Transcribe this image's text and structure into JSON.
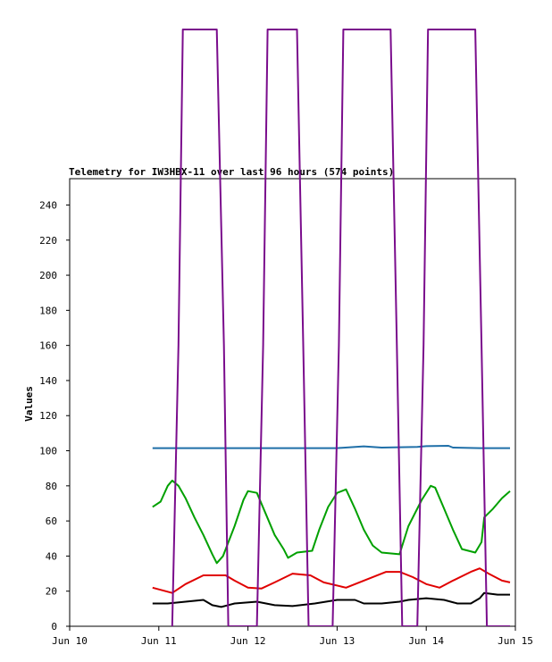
{
  "chart_data": {
    "type": "line",
    "title": "Telemetry for IW3HBX-11 over last 96 hours (574 points)",
    "xlabel": "",
    "ylabel": "Values",
    "xlim": [
      "Jun 10",
      "Jun 15"
    ],
    "ylim": [
      0,
      255
    ],
    "x_ticks": [
      "Jun 10",
      "Jun 11",
      "Jun 12",
      "Jun 13",
      "Jun 14",
      "Jun 15"
    ],
    "y_ticks": [
      0,
      20,
      40,
      60,
      80,
      100,
      120,
      140,
      160,
      180,
      200,
      220,
      240
    ],
    "grid": false,
    "legend": "none",
    "series": [
      {
        "color": "#1f6fa8",
        "points": [
          [
            10.93,
            101.5
          ],
          [
            11.5,
            101.5
          ],
          [
            12.0,
            101.5
          ],
          [
            12.5,
            101.5
          ],
          [
            13.0,
            101.5
          ],
          [
            13.3,
            102.5
          ],
          [
            13.5,
            101.8
          ],
          [
            13.9,
            102.2
          ],
          [
            14.0,
            102.6
          ],
          [
            14.25,
            102.8
          ],
          [
            14.3,
            101.8
          ],
          [
            14.6,
            101.5
          ],
          [
            14.94,
            101.5
          ]
        ]
      },
      {
        "color": "#00a000",
        "points": [
          [
            10.93,
            68
          ],
          [
            11.02,
            71
          ],
          [
            11.1,
            80
          ],
          [
            11.15,
            83
          ],
          [
            11.22,
            80
          ],
          [
            11.3,
            73
          ],
          [
            11.4,
            62
          ],
          [
            11.5,
            52
          ],
          [
            11.6,
            41
          ],
          [
            11.65,
            36
          ],
          [
            11.72,
            40
          ],
          [
            11.85,
            57
          ],
          [
            11.95,
            72
          ],
          [
            12.0,
            77
          ],
          [
            12.1,
            76
          ],
          [
            12.2,
            64
          ],
          [
            12.3,
            52
          ],
          [
            12.4,
            44
          ],
          [
            12.45,
            39
          ],
          [
            12.55,
            42
          ],
          [
            12.72,
            43
          ],
          [
            12.8,
            55
          ],
          [
            12.9,
            68
          ],
          [
            13.0,
            76
          ],
          [
            13.1,
            78
          ],
          [
            13.2,
            67
          ],
          [
            13.3,
            55
          ],
          [
            13.4,
            46
          ],
          [
            13.5,
            42
          ],
          [
            13.7,
            41
          ],
          [
            13.8,
            57
          ],
          [
            13.95,
            72
          ],
          [
            14.05,
            80
          ],
          [
            14.1,
            79
          ],
          [
            14.2,
            67
          ],
          [
            14.3,
            55
          ],
          [
            14.4,
            44
          ],
          [
            14.55,
            42
          ],
          [
            14.62,
            48
          ],
          [
            14.65,
            62
          ],
          [
            14.75,
            67
          ],
          [
            14.85,
            73
          ],
          [
            14.94,
            77
          ]
        ]
      },
      {
        "color": "#e00000",
        "points": [
          [
            10.93,
            22
          ],
          [
            11.0,
            21
          ],
          [
            11.15,
            19
          ],
          [
            11.3,
            24
          ],
          [
            11.5,
            29
          ],
          [
            11.75,
            29
          ],
          [
            11.85,
            26
          ],
          [
            12.0,
            22
          ],
          [
            12.15,
            21.5
          ],
          [
            12.3,
            25
          ],
          [
            12.5,
            30
          ],
          [
            12.7,
            29
          ],
          [
            12.85,
            25
          ],
          [
            13.1,
            22
          ],
          [
            13.3,
            26
          ],
          [
            13.55,
            31
          ],
          [
            13.7,
            31
          ],
          [
            13.85,
            28
          ],
          [
            14.0,
            24
          ],
          [
            14.15,
            22
          ],
          [
            14.3,
            26
          ],
          [
            14.5,
            31
          ],
          [
            14.6,
            33
          ],
          [
            14.7,
            30
          ],
          [
            14.85,
            26
          ],
          [
            14.94,
            25
          ]
        ]
      },
      {
        "color": "#000000",
        "points": [
          [
            10.93,
            13
          ],
          [
            11.1,
            13
          ],
          [
            11.3,
            14
          ],
          [
            11.5,
            15
          ],
          [
            11.6,
            12
          ],
          [
            11.7,
            11
          ],
          [
            11.85,
            13
          ],
          [
            12.1,
            14
          ],
          [
            12.3,
            12
          ],
          [
            12.5,
            11.5
          ],
          [
            12.75,
            13
          ],
          [
            13.0,
            15
          ],
          [
            13.2,
            15
          ],
          [
            13.3,
            13
          ],
          [
            13.5,
            13
          ],
          [
            13.7,
            14
          ],
          [
            13.8,
            15
          ],
          [
            14.0,
            16
          ],
          [
            14.2,
            15
          ],
          [
            14.35,
            13
          ],
          [
            14.5,
            13
          ],
          [
            14.6,
            16
          ],
          [
            14.65,
            19
          ],
          [
            14.8,
            18
          ],
          [
            14.94,
            18
          ]
        ]
      },
      {
        "color": "#7a0c8c",
        "points": [
          [
            11.15,
            0
          ],
          [
            11.22,
            160
          ],
          [
            11.27,
            340
          ],
          [
            11.65,
            340
          ],
          [
            11.73,
            160
          ],
          [
            11.78,
            0
          ],
          [
            12.1,
            0
          ],
          [
            12.17,
            160
          ],
          [
            12.22,
            340
          ],
          [
            12.55,
            340
          ],
          [
            12.62,
            160
          ],
          [
            12.68,
            0
          ],
          [
            12.95,
            0
          ],
          [
            13.02,
            160
          ],
          [
            13.07,
            340
          ],
          [
            13.6,
            340
          ],
          [
            13.67,
            160
          ],
          [
            13.73,
            0
          ],
          [
            13.9,
            0
          ],
          [
            13.97,
            160
          ],
          [
            14.02,
            340
          ],
          [
            14.55,
            340
          ],
          [
            14.62,
            160
          ],
          [
            14.68,
            0
          ],
          [
            14.94,
            0
          ]
        ]
      }
    ]
  }
}
